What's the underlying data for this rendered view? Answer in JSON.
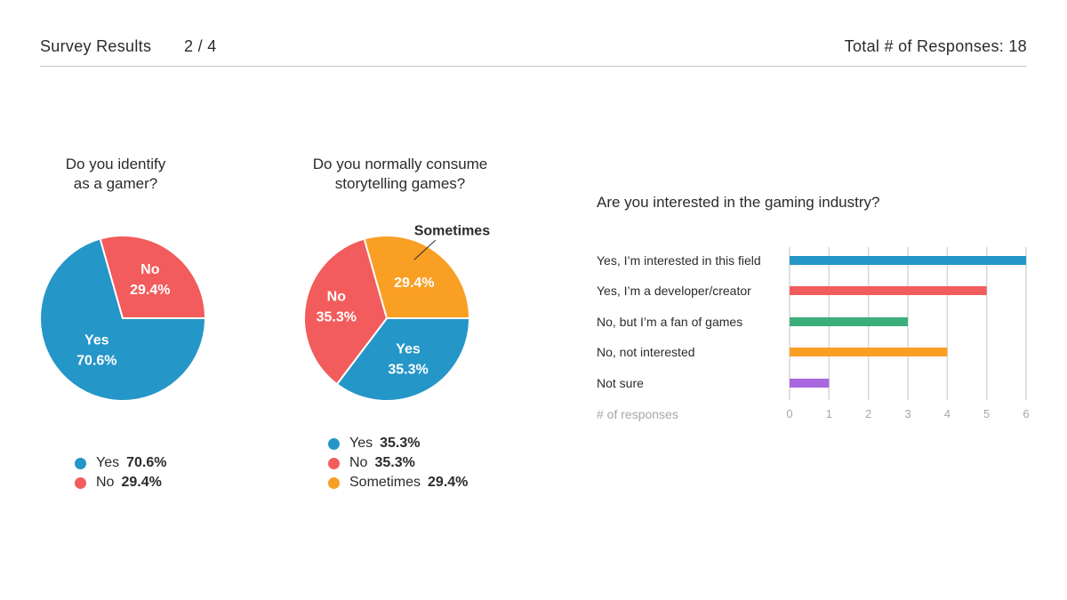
{
  "header": {
    "title": "Survey Results",
    "page": "2 / 4",
    "total": "Total # of Responses: 18"
  },
  "colors": {
    "yes": "#2596c8",
    "no": "#f25c5c",
    "sometimes": "#f99f24",
    "green": "#3cae7a",
    "purple": "#a868e0"
  },
  "chart_data": [
    {
      "type": "pie",
      "title": "Do you identify as a gamer?",
      "title_lines": [
        "Do you identify",
        "as a gamer?"
      ],
      "slices": [
        {
          "label": "Yes",
          "value": 70.6,
          "display": "70.6%",
          "color": "#2596c8"
        },
        {
          "label": "No",
          "value": 29.4,
          "display": "29.4%",
          "color": "#f25c5c"
        }
      ],
      "legend": [
        {
          "label": "Yes",
          "value": "70.6%"
        },
        {
          "label": "No",
          "value": "29.4%"
        }
      ]
    },
    {
      "type": "pie",
      "title": "Do you normally consume storytelling games?",
      "title_lines": [
        "Do you normally consume",
        "storytelling games?"
      ],
      "slices": [
        {
          "label": "Yes",
          "value": 35.3,
          "display": "35.3%",
          "color": "#2596c8"
        },
        {
          "label": "No",
          "value": 35.3,
          "display": "35.3%",
          "color": "#f25c5c"
        },
        {
          "label": "Sometimes",
          "value": 29.4,
          "display": "29.4%",
          "color": "#f99f24"
        }
      ],
      "legend": [
        {
          "label": "Yes",
          "value": "35.3%"
        },
        {
          "label": "No",
          "value": "35.3%"
        },
        {
          "label": "Sometimes",
          "value": "29.4%"
        }
      ]
    },
    {
      "type": "bar",
      "orientation": "horizontal",
      "title": "Are you interested in the gaming industry?",
      "categories": [
        "Yes, I’m interested in this field",
        "Yes, I’m a developer/creator",
        "No, but I’m a fan of games",
        "No, not interested",
        "Not sure"
      ],
      "values": [
        6,
        5,
        3,
        4,
        1
      ],
      "colors": [
        "#2596c8",
        "#f25c5c",
        "#3cae7a",
        "#f99f24",
        "#a868e0"
      ],
      "xlabel": "# of responses",
      "xlim": [
        0,
        6
      ],
      "xticks": [
        0,
        1,
        2,
        3,
        4,
        5,
        6
      ],
      "grid": true
    }
  ]
}
